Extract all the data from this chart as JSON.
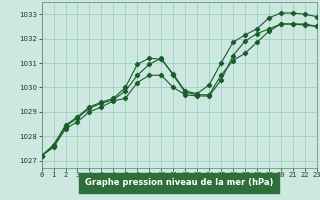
{
  "xlabel": "Graphe pression niveau de la mer (hPa)",
  "background_color": "#cce8e0",
  "plot_bg_color": "#cce8e0",
  "grid_color": "#99ccbb",
  "line_color": "#1a5c2a",
  "xlabel_bg": "#2d6e3a",
  "xlabel_fg": "#ffffff",
  "x_ticks": [
    0,
    1,
    2,
    3,
    4,
    5,
    6,
    7,
    8,
    9,
    10,
    11,
    12,
    13,
    14,
    15,
    16,
    17,
    18,
    19,
    20,
    21,
    22,
    23
  ],
  "ylim": [
    1026.7,
    1033.5
  ],
  "xlim": [
    0,
    23
  ],
  "yticks": [
    1027,
    1028,
    1029,
    1030,
    1031,
    1032,
    1033
  ],
  "series1_x": [
    0,
    1,
    2,
    3,
    4,
    5,
    6,
    7,
    8,
    9,
    10,
    11,
    12,
    13,
    14,
    15,
    16,
    17,
    18,
    19,
    20,
    21,
    22,
    23
  ],
  "series1_y": [
    1027.2,
    1027.65,
    1028.45,
    1028.8,
    1029.2,
    1029.4,
    1029.55,
    1030.0,
    1030.95,
    1031.2,
    1031.15,
    1030.55,
    1029.85,
    1029.75,
    1030.1,
    1031.0,
    1031.85,
    1032.15,
    1032.4,
    1032.85,
    1033.05,
    1033.05,
    1033.0,
    1032.9
  ],
  "series2_x": [
    0,
    1,
    2,
    3,
    4,
    5,
    6,
    7,
    8,
    9,
    10,
    11,
    12,
    13,
    14,
    15,
    16,
    17,
    18,
    19,
    20,
    21,
    22,
    23
  ],
  "series2_y": [
    1027.2,
    1027.6,
    1028.4,
    1028.75,
    1029.15,
    1029.35,
    1029.5,
    1029.85,
    1030.5,
    1030.95,
    1031.2,
    1030.5,
    1029.8,
    1029.7,
    1029.7,
    1030.5,
    1031.1,
    1031.4,
    1031.85,
    1032.3,
    1032.6,
    1032.6,
    1032.6,
    1032.5
  ],
  "series3_x": [
    0,
    1,
    2,
    3,
    4,
    5,
    6,
    7,
    8,
    9,
    10,
    11,
    12,
    13,
    14,
    15,
    16,
    17,
    18,
    19,
    20,
    21,
    22,
    23
  ],
  "series3_y": [
    1027.2,
    1027.55,
    1028.3,
    1028.6,
    1029.0,
    1029.2,
    1029.45,
    1029.55,
    1030.2,
    1030.5,
    1030.5,
    1030.0,
    1029.7,
    1029.65,
    1029.65,
    1030.3,
    1031.3,
    1031.9,
    1032.2,
    1032.4,
    1032.6,
    1032.6,
    1032.55,
    1032.5
  ],
  "tick_fontsize": 5,
  "xlabel_fontsize": 6
}
